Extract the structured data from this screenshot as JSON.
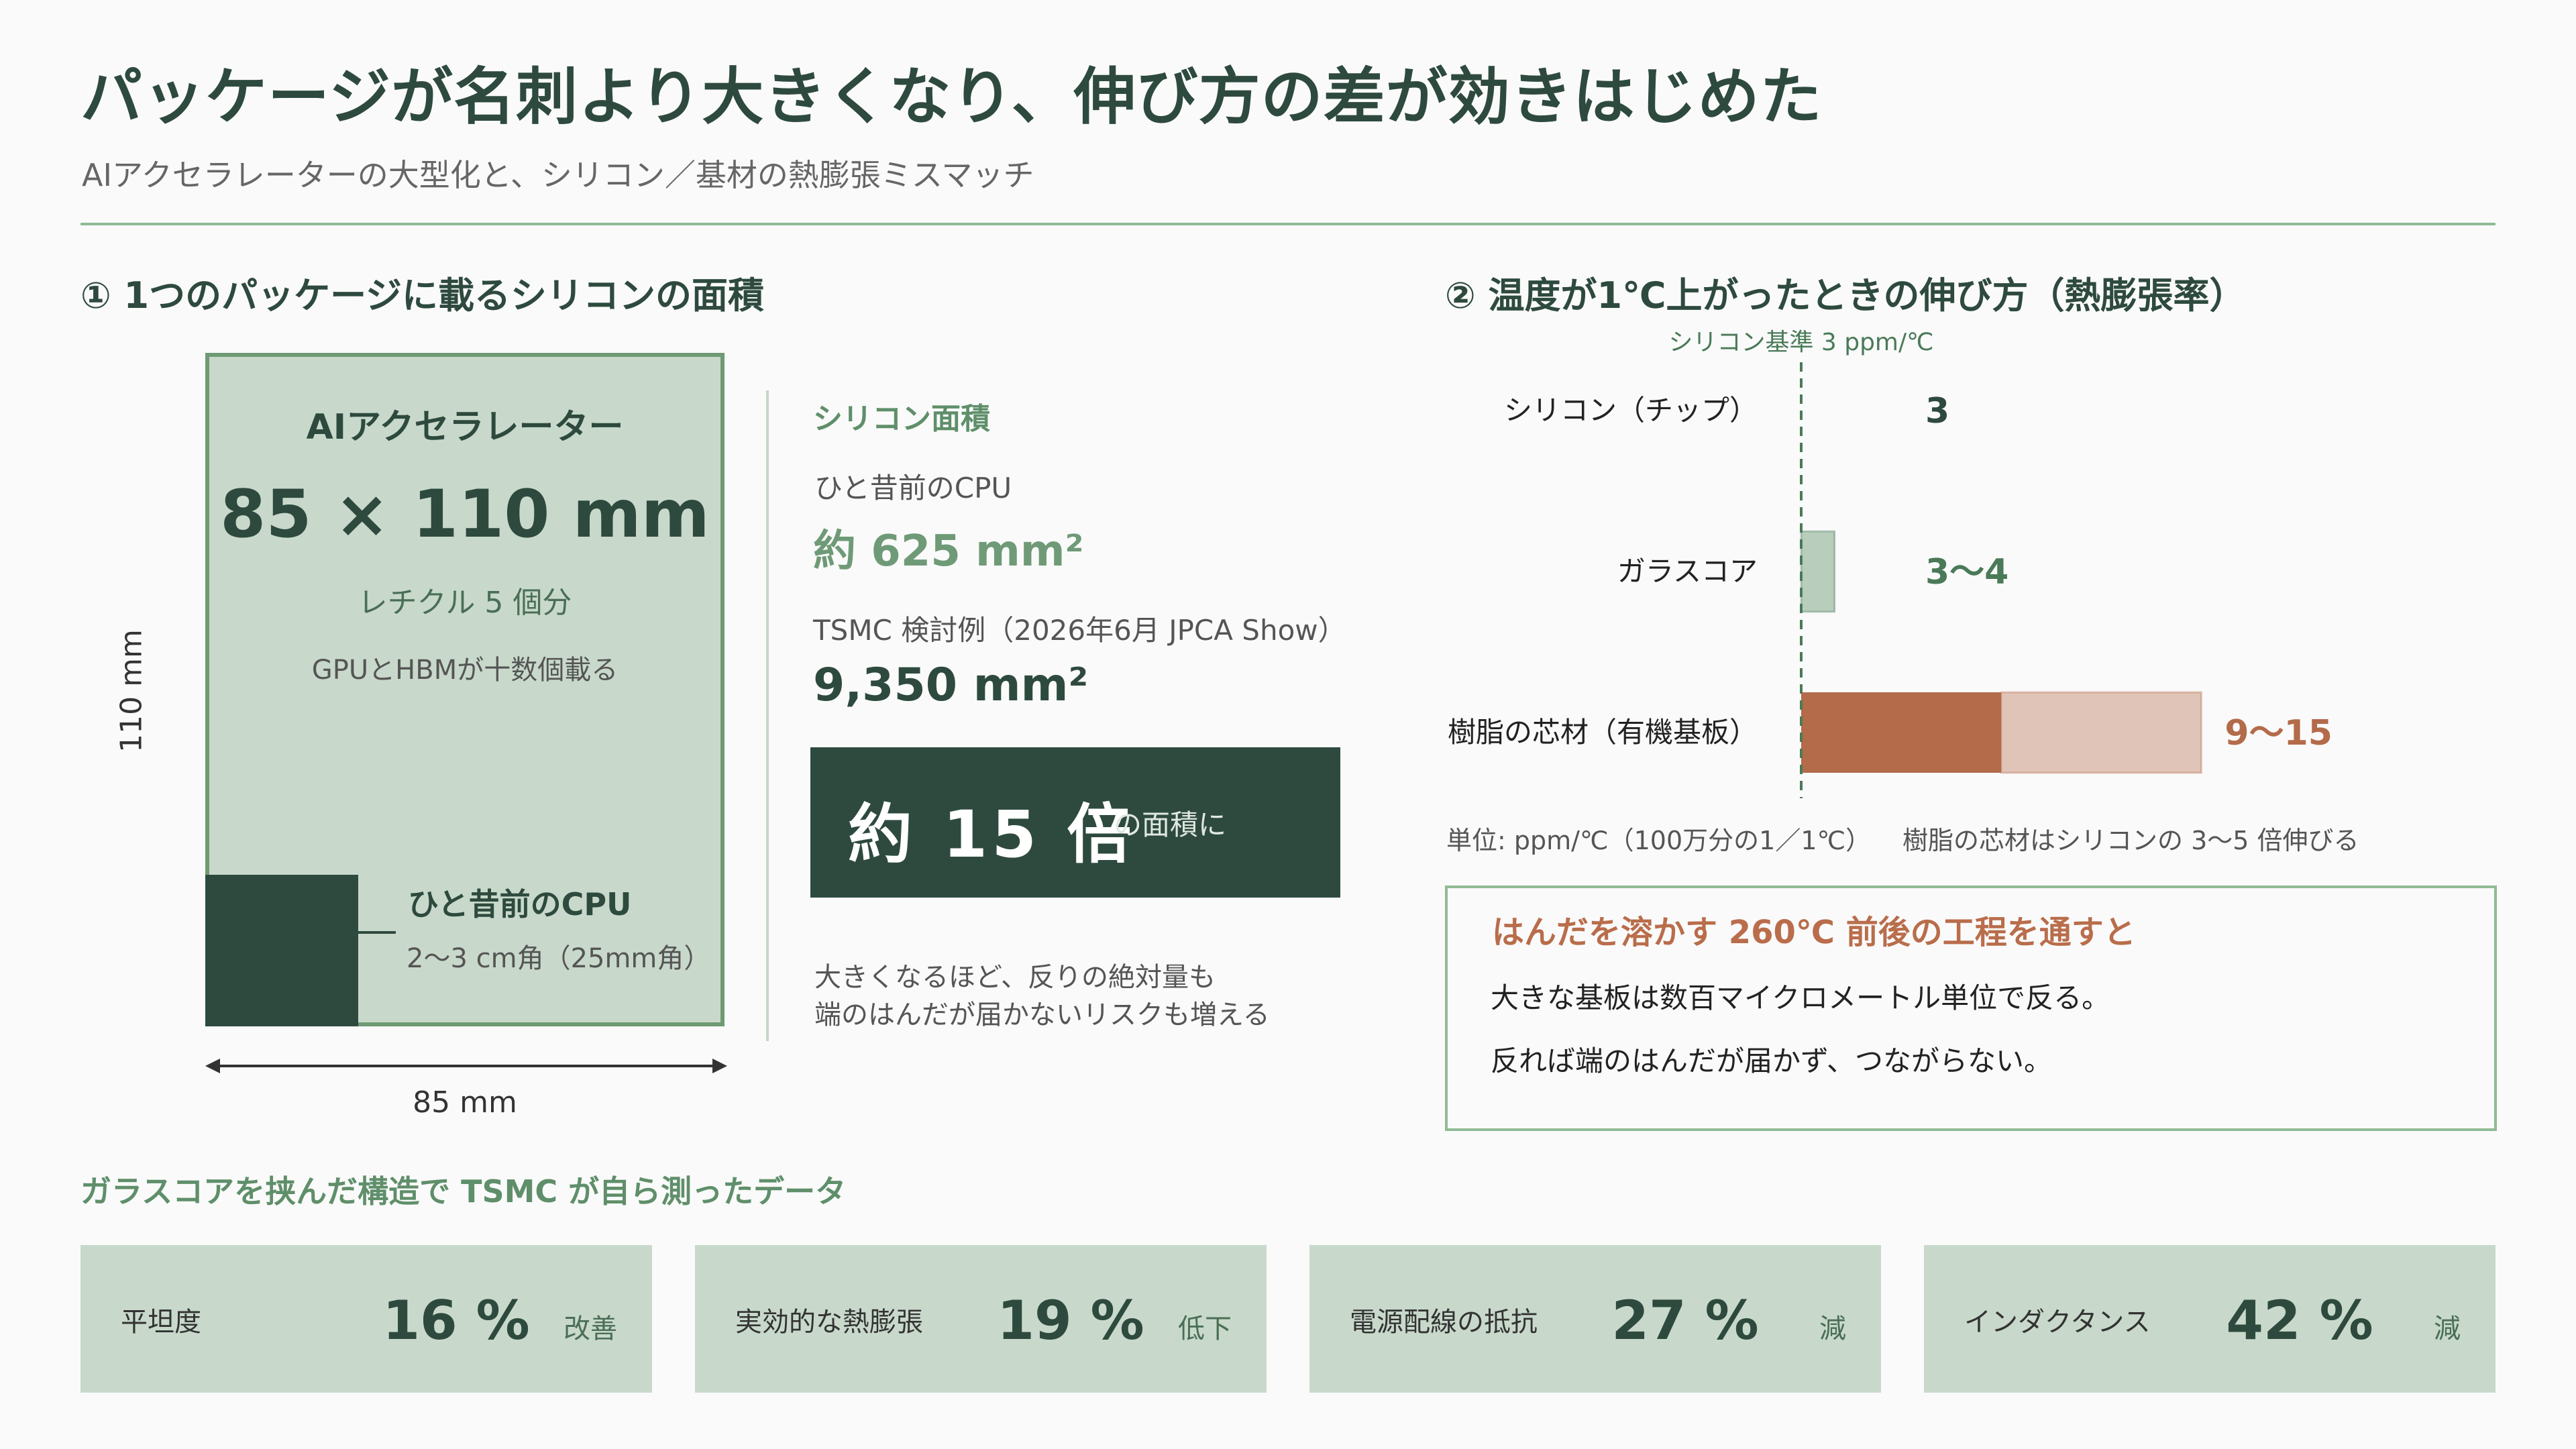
{
  "title": "パッケージが名刺より大きくなり、伸び方の差が効きはじめた",
  "subtitle": "AIアクセラレーターの大型化と、シリコン／基材の熱膨張ミスマッチ",
  "section1": {
    "heading": "① 1つのパッケージに載るシリコンの面積",
    "package": {
      "name": "AIアクセラレーター",
      "size": "85 × 110 mm",
      "reticle": "レチクル 5 個分",
      "note": "GPUとHBMが十数個載る",
      "height_label": "110 mm",
      "width_label": "85 mm"
    },
    "cpu": {
      "label": "ひと昔前のCPU",
      "size": "2〜3 cm角（25mm角）"
    },
    "area": {
      "heading": "シリコン面積",
      "cpu_label": "ひと昔前のCPU",
      "cpu_value": "約 625 mm²",
      "tsmc_label": "TSMC 検討例（2026年6月 JPCA Show）",
      "tsmc_value": "9,350 mm²",
      "ratio_big": "約 15 倍",
      "ratio_small": "の面積に",
      "risk_line1": "大きくなるほど、反りの絶対量も",
      "risk_line2": "端のはんだが届かないリスクも増える"
    }
  },
  "section2": {
    "heading": "② 温度が1℃上がったときの伸び方（熱膨張率）",
    "unit_note": "単位: ppm/℃（100万分の1／1℃）",
    "ratio_note": "樹脂の芯材はシリコンの 3〜5 倍伸びる",
    "solder": {
      "heading": "はんだを溶かす 260℃ 前後の工程を通すと",
      "line1": "大きな基板は数百マイクロメートル単位で反る。",
      "line2": "反れば端のはんだが届かず、つながらない。"
    }
  },
  "chart_data": {
    "type": "bar",
    "orientation": "horizontal",
    "reference": {
      "label": "シリコン基準 3 ppm/℃",
      "value": 3
    },
    "categories": [
      "シリコン（チップ）",
      "ガラスコア",
      "樹脂の芯材（有機基板）"
    ],
    "ranges": [
      [
        3,
        3
      ],
      [
        3,
        4
      ],
      [
        9,
        15
      ]
    ],
    "value_labels": [
      "3",
      "3〜4",
      "9〜15"
    ],
    "colors": [
      "#2e4a3e",
      "#4a7a58",
      "#b36b4a"
    ],
    "range_colors": [
      "#2e4a3e",
      "#b9cdbd",
      "#e0c4b8"
    ],
    "xlim": [
      0,
      15
    ],
    "grid": false
  },
  "bottom": {
    "heading": "ガラスコアを挟んだ構造で TSMC が自ら測ったデータ",
    "cards": [
      {
        "label": "平坦度",
        "value": "16 %",
        "unit": "改善"
      },
      {
        "label": "実効的な熱膨張",
        "value": "19 %",
        "unit": "低下"
      },
      {
        "label": "電源配線の抵抗",
        "value": "27 %",
        "unit": "減"
      },
      {
        "label": "インダクタンス",
        "value": "42 %",
        "unit": "減"
      }
    ]
  }
}
